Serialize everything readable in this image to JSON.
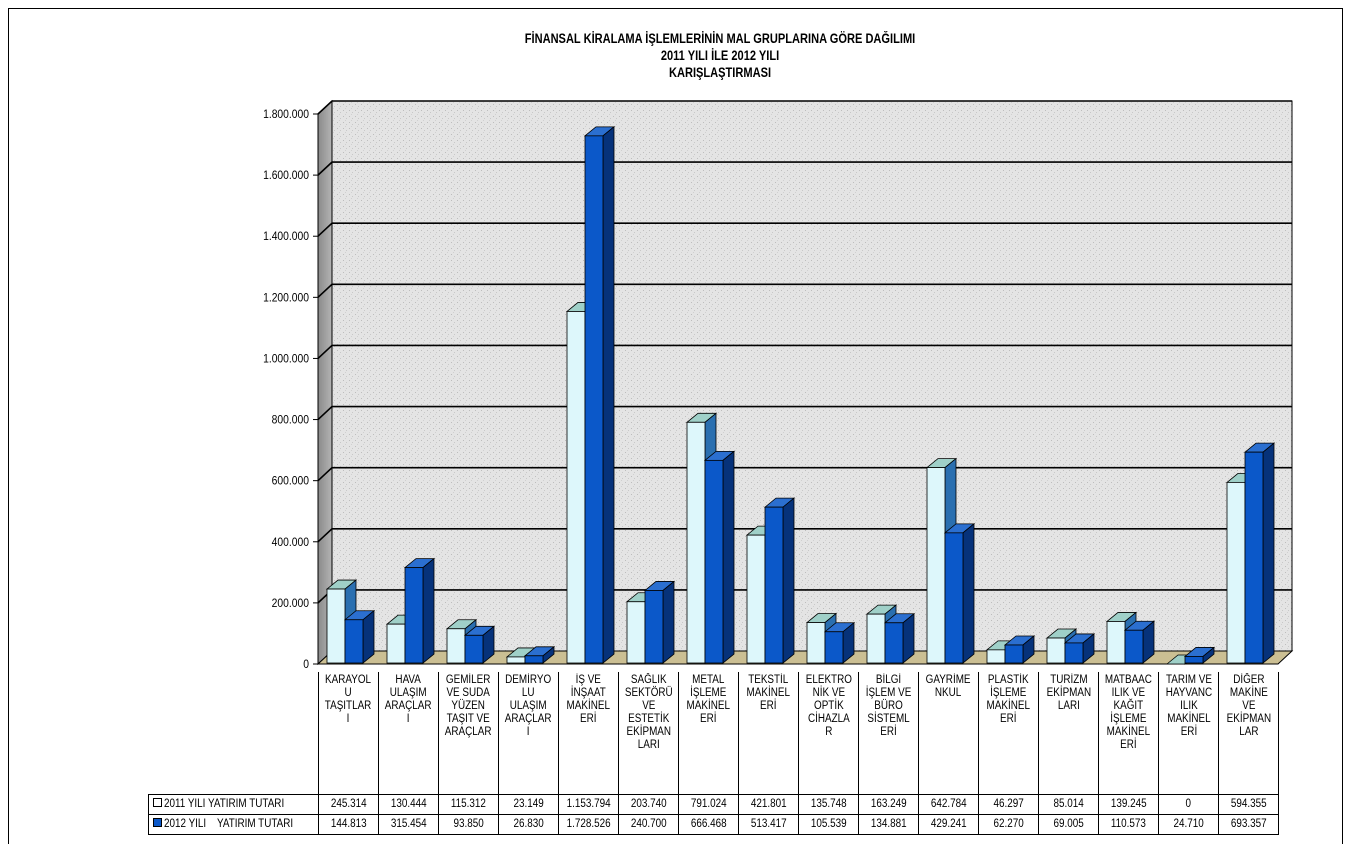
{
  "chart_data": {
    "type": "bar",
    "title_lines": [
      "FİNANSAL KİRALAMA İŞLEMLERİNİN MAL GRUPLARINA GÖRE DAĞILIMI",
      "2011 YILI İLE 2012 YILI",
      "KARIŞLAŞTIRMASI"
    ],
    "categories": [
      "KARAYOLU TAŞITLARI",
      "HAVA ULAŞIM ARAÇLARI",
      "GEMİLER VE SUDA YÜZEN TAŞIT VE ARAÇLAR",
      "DEMİRYOLU ULAŞIM ARAÇLARI",
      "İŞ VE İNŞAAT MAKİNELERİ",
      "SAĞLIK SEKTÖRÜ VE ESTETİK EKİPMANLARI",
      "METAL İŞLEME MAKİNELERİ",
      "TEKSTİL MAKİNELERİ",
      "ELEKTRONİK VE OPTİK CİHAZLAR",
      "BİLGİ İŞLEM VE BÜRO SİSTEMLERİ",
      "GAYRİMENKUL",
      "PLASTİK İŞLEME MAKİNELERİ",
      "TURİZM EKİPMANLARI",
      "MATBAACILIK VE KAĞIT İŞLEME MAKİNELERİ",
      "TARIM VE HAYVANCILIK MAKİNELERİ",
      "DİĞER MAKİNE VE EKİPMANLAR"
    ],
    "category_labels": [
      [
        "KARAYOL",
        "U",
        "TAŞITLAR",
        "I"
      ],
      [
        "HAVA",
        "ULAŞIM",
        "ARAÇLAR",
        "I"
      ],
      [
        "GEMİLER",
        "VE SUDA",
        "YÜZEN",
        "TAŞIT VE",
        "ARAÇLAR"
      ],
      [
        "DEMİRYO",
        "LU",
        "ULAŞIM",
        "ARAÇLAR",
        "I"
      ],
      [
        "İŞ VE",
        "İNŞAAT",
        "MAKİNEL",
        "ERİ"
      ],
      [
        "SAĞLIK",
        "SEKTÖRÜ",
        "VE",
        "ESTETİK",
        "EKİPMAN",
        "LARI"
      ],
      [
        "METAL",
        "İŞLEME",
        "MAKİNEL",
        "ERİ"
      ],
      [
        "TEKSTİL",
        "MAKİNEL",
        "ERİ"
      ],
      [
        "ELEKTRO",
        "NİK VE",
        "OPTİK",
        "CİHAZLA",
        "R"
      ],
      [
        "BİLGİ",
        "İŞLEM VE",
        "BÜRO",
        "SİSTEML",
        "ERİ"
      ],
      [
        "GAYRİME",
        "NKUL"
      ],
      [
        "PLASTİK",
        "İŞLEME",
        "MAKİNEL",
        "ERİ"
      ],
      [
        "TURİZM",
        "EKİPMAN",
        "LARI"
      ],
      [
        "MATBAAC",
        "ILIK VE",
        "KAĞIT",
        "İŞLEME",
        "MAKİNEL",
        "ERİ"
      ],
      [
        "TARIM VE",
        "HAYVANC",
        "ILIK",
        "MAKİNEL",
        "ERİ"
      ],
      [
        "DİĞER",
        "MAKİNE",
        "VE",
        "EKİPMAN",
        "LAR"
      ]
    ],
    "series": [
      {
        "name": "2011 YILI YATIRIM TUTARI",
        "color": "#ddf7fb",
        "values": [
          245314,
          130444,
          115312,
          23149,
          1153794,
          203740,
          791024,
          421801,
          135748,
          163249,
          642784,
          46297,
          85014,
          139245,
          0,
          594355
        ],
        "labels": [
          "245.314",
          "130.444",
          "115.312",
          "23.149",
          "1.153.794",
          "203.740",
          "791.024",
          "421.801",
          "135.748",
          "163.249",
          "642.784",
          "46.297",
          "85.014",
          "139.245",
          "0",
          "594.355"
        ]
      },
      {
        "name": "2012 YILI    YATIRIM TUTARI",
        "color": "#0b58c9",
        "values": [
          144813,
          315454,
          93850,
          26830,
          1728526,
          240700,
          666468,
          513417,
          105539,
          134881,
          429241,
          62270,
          69005,
          110573,
          24710,
          693357
        ],
        "labels": [
          "144.813",
          "315.454",
          "93.850",
          "26.830",
          "1.728.526",
          "240.700",
          "666.468",
          "513.417",
          "105.539",
          "134.881",
          "429.241",
          "62.270",
          "69.005",
          "110.573",
          "24.710",
          "693.357"
        ]
      }
    ],
    "ylim": [
      0,
      1800000
    ],
    "yticks": [
      0,
      200000,
      400000,
      600000,
      800000,
      1000000,
      1200000,
      1400000,
      1600000,
      1800000
    ],
    "ytick_labels": [
      "0",
      "200.000",
      "400.000",
      "600.000",
      "800.000",
      "1.000.000",
      "1.200.000",
      "1.400.000",
      "1.600.000",
      "1.800.000"
    ],
    "legend": "data-table",
    "grid": true,
    "style": "3d-clustered-bar",
    "colors": {
      "wall": "#e6e6e6",
      "floor": "#cbbf93",
      "side_wall": "#9e9e9e",
      "gridline": "#000000"
    }
  }
}
